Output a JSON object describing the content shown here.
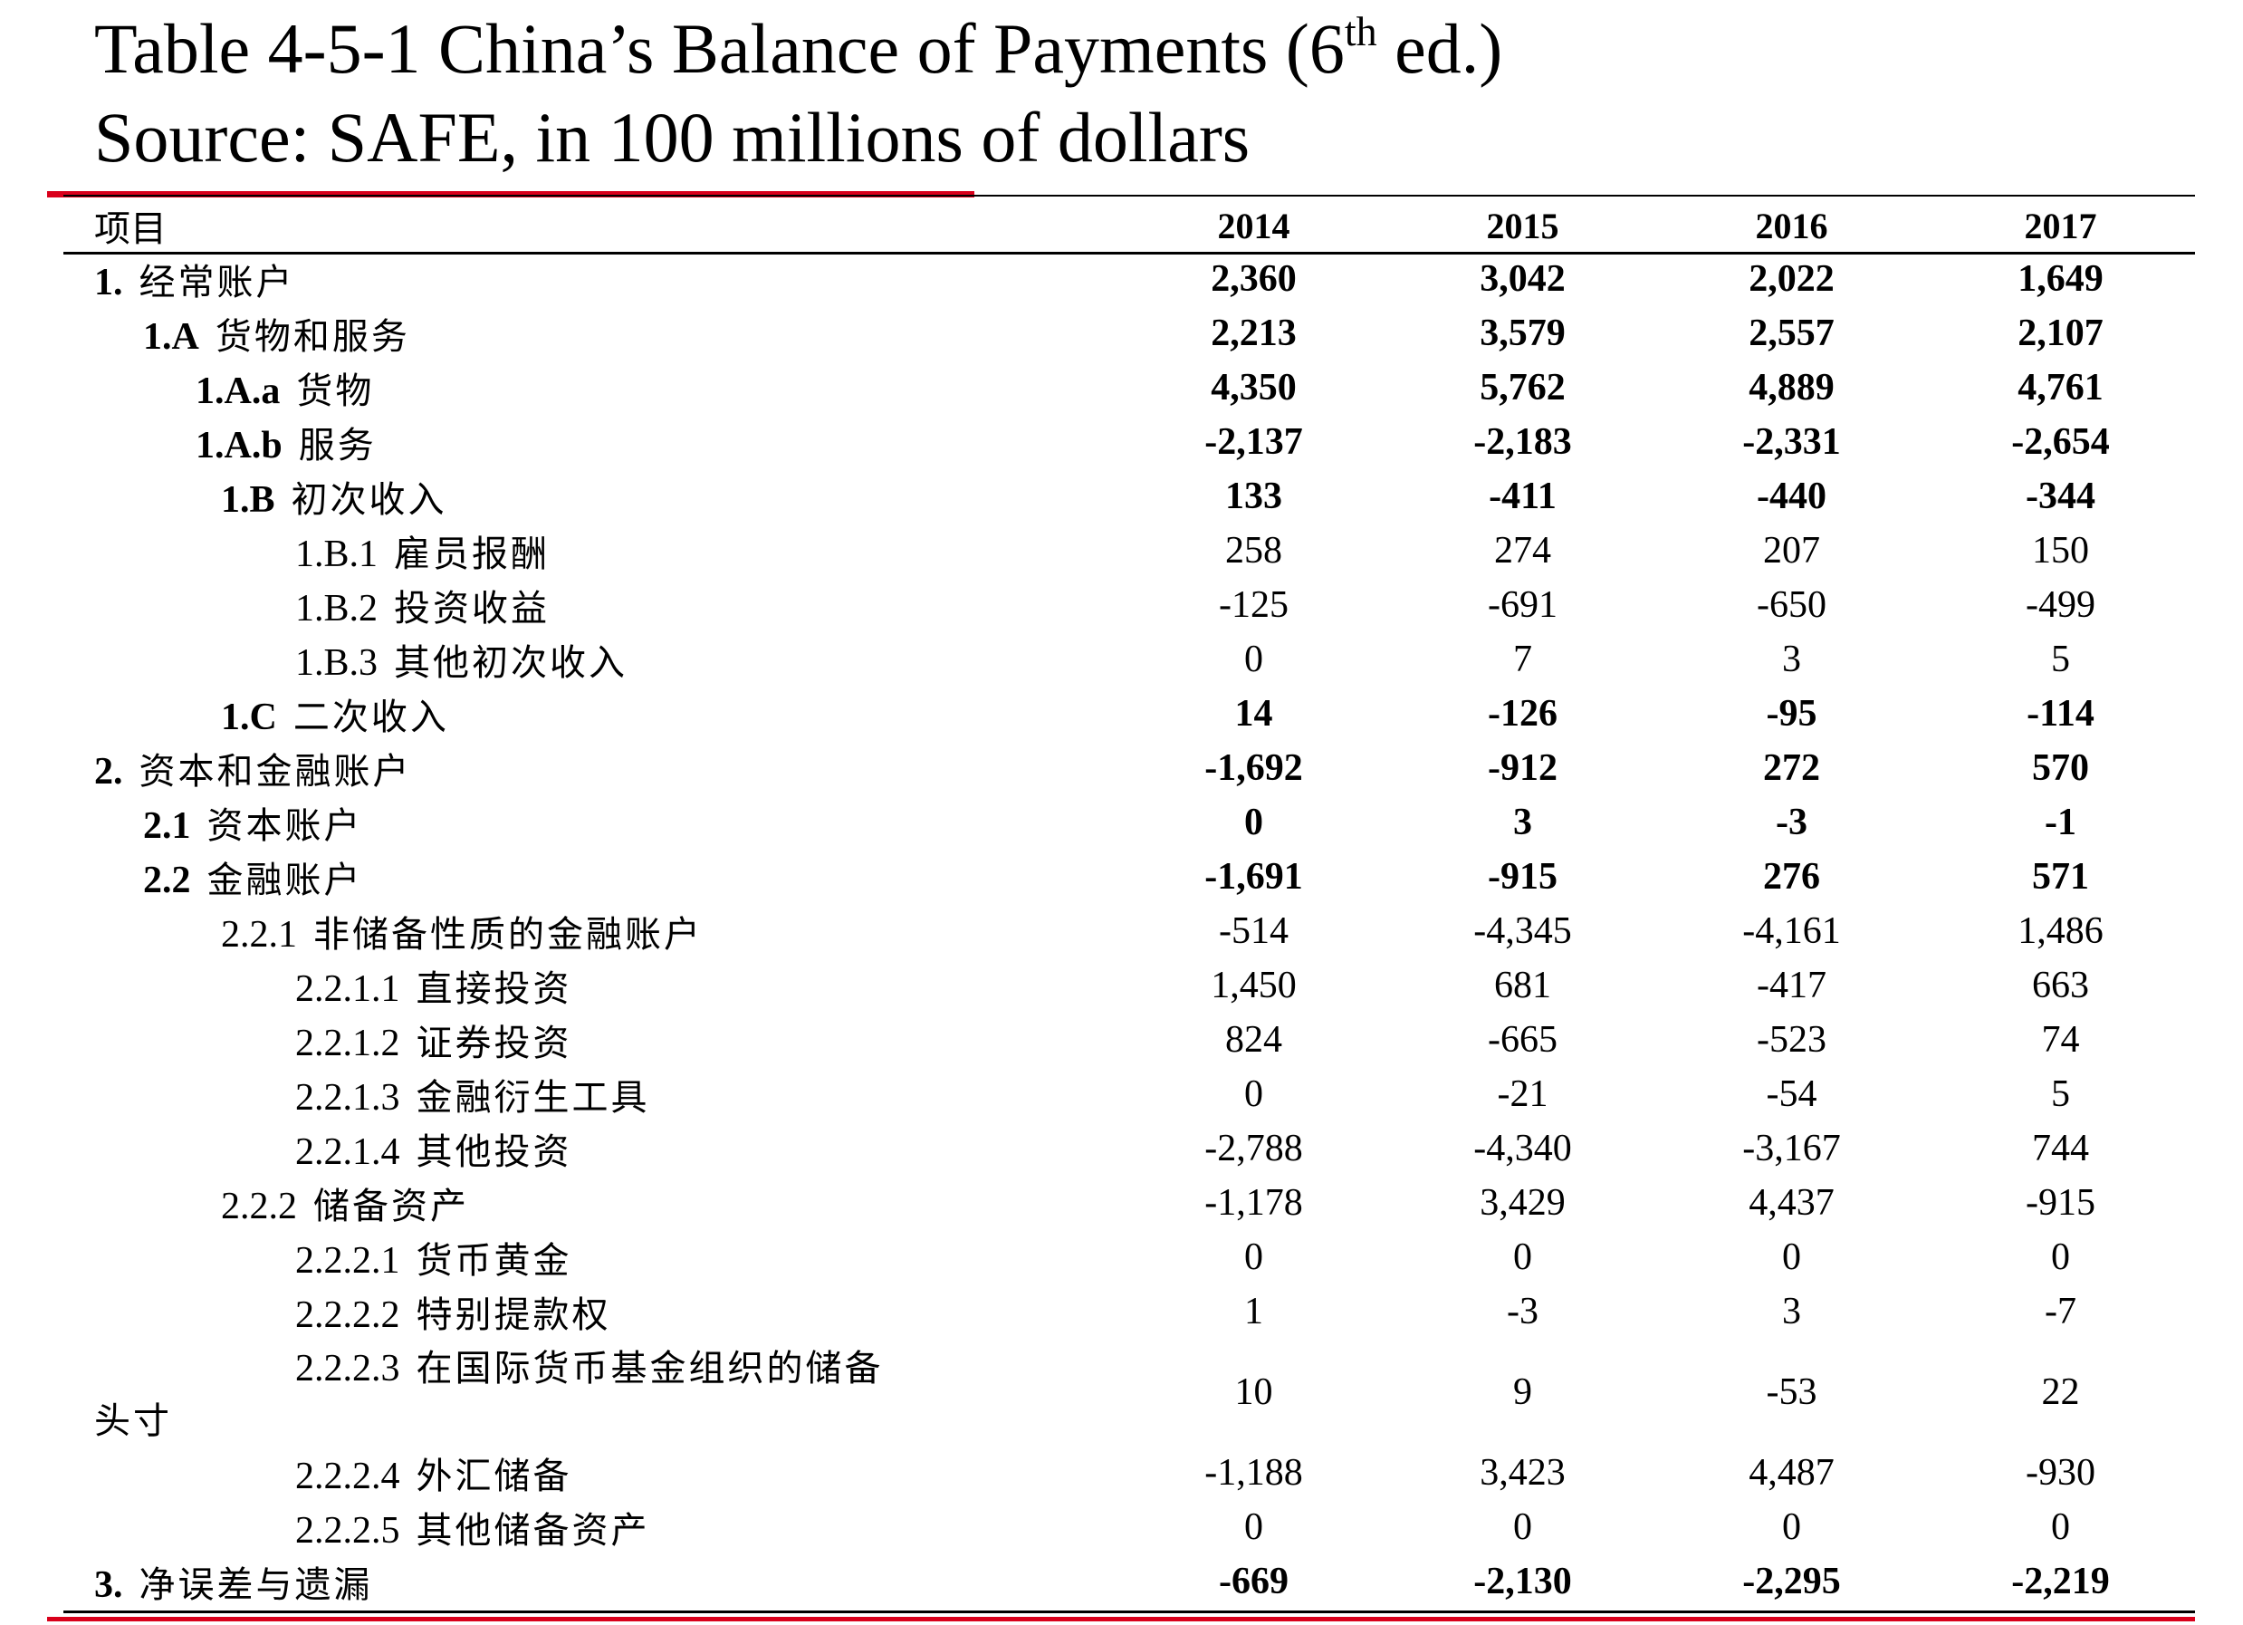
{
  "title": {
    "line1_prefix": "Table 4-5-1 China’s Balance of Payments  (6",
    "line1_sup": "th",
    "line1_suffix": " ed.)",
    "line2": "Source: SAFE, in 100 millions of dollars"
  },
  "table": {
    "header": {
      "label": "项目",
      "years": [
        "2014",
        "2015",
        "2016",
        "2017"
      ]
    },
    "rows": [
      {
        "code": "1.",
        "name": "经常账户",
        "values": [
          "2,360",
          "3,042",
          "2,022",
          "1,649"
        ]
      },
      {
        "code": "1.A",
        "name": "货物和服务",
        "values": [
          "2,213",
          "3,579",
          "2,557",
          "2,107"
        ]
      },
      {
        "code": "1.A.a",
        "name": "货物",
        "values": [
          "4,350",
          "5,762",
          "4,889",
          "4,761"
        ]
      },
      {
        "code": "1.A.b",
        "name": "服务",
        "values": [
          "-2,137",
          "-2,183",
          "-2,331",
          "-2,654"
        ]
      },
      {
        "code": "1.B",
        "name": "初次收入",
        "values": [
          "133",
          "-411",
          "-440",
          "-344"
        ]
      },
      {
        "code": "1.B.1",
        "name": "雇员报酬",
        "values": [
          "258",
          "274",
          "207",
          "150"
        ]
      },
      {
        "code": "1.B.2",
        "name": "投资收益",
        "values": [
          "-125",
          "-691",
          "-650",
          "-499"
        ]
      },
      {
        "code": "1.B.3",
        "name": "其他初次收入",
        "values": [
          "0",
          "7",
          "3",
          "5"
        ]
      },
      {
        "code": "1.C",
        "name": "二次收入",
        "values": [
          "14",
          "-126",
          "-95",
          "-114"
        ]
      },
      {
        "code": "2.",
        "name": "资本和金融账户",
        "values": [
          "-1,692",
          "-912",
          "272",
          "570"
        ]
      },
      {
        "code": "2.1",
        "name": "资本账户",
        "values": [
          "0",
          "3",
          "-3",
          "-1"
        ]
      },
      {
        "code": "2.2",
        "name": "金融账户",
        "values": [
          "-1,691",
          "-915",
          "276",
          "571"
        ]
      },
      {
        "code": "2.2.1",
        "name": "非储备性质的金融账户",
        "values": [
          "-514",
          "-4,345",
          "-4,161",
          "1,486"
        ]
      },
      {
        "code": "2.2.1.1",
        "name": "直接投资",
        "values": [
          "1,450",
          "681",
          "-417",
          "663"
        ]
      },
      {
        "code": "2.2.1.2",
        "name": "证券投资",
        "values": [
          "824",
          "-665",
          "-523",
          "74"
        ]
      },
      {
        "code": "2.2.1.3",
        "name": "金融衍生工具",
        "values": [
          "0",
          "-21",
          "-54",
          "5"
        ]
      },
      {
        "code": "2.2.1.4",
        "name": "其他投资",
        "values": [
          "-2,788",
          "-4,340",
          "-3,167",
          "744"
        ]
      },
      {
        "code": "2.2.2",
        "name": "储备资产",
        "values": [
          "-1,178",
          "3,429",
          "4,437",
          "-915"
        ]
      },
      {
        "code": "2.2.2.1",
        "name": "货币黄金",
        "values": [
          "0",
          "0",
          "0",
          "0"
        ]
      },
      {
        "code": "2.2.2.2",
        "name": "特别提款权",
        "values": [
          "1",
          "-3",
          "3",
          "-7"
        ]
      },
      {
        "code": "2.2.2.3",
        "name": "在国际货币基金组织的储备",
        "name_cont": "头寸",
        "values": [
          "10",
          "9",
          "-53",
          "22"
        ]
      },
      {
        "code": "2.2.2.4",
        "name": "外汇储备",
        "values": [
          "-1,188",
          "3,423",
          "4,487",
          "-930"
        ]
      },
      {
        "code": "2.2.2.5",
        "name": "其他储备资产",
        "values": [
          "0",
          "0",
          "0",
          "0"
        ]
      },
      {
        "code": "3.",
        "name": "净误差与遗漏",
        "values": [
          "-669",
          "-2,130",
          "-2,295",
          "-2,219"
        ]
      }
    ]
  },
  "colors": {
    "accent_rule": "#d9001b",
    "text": "#000000",
    "background": "#ffffff"
  }
}
